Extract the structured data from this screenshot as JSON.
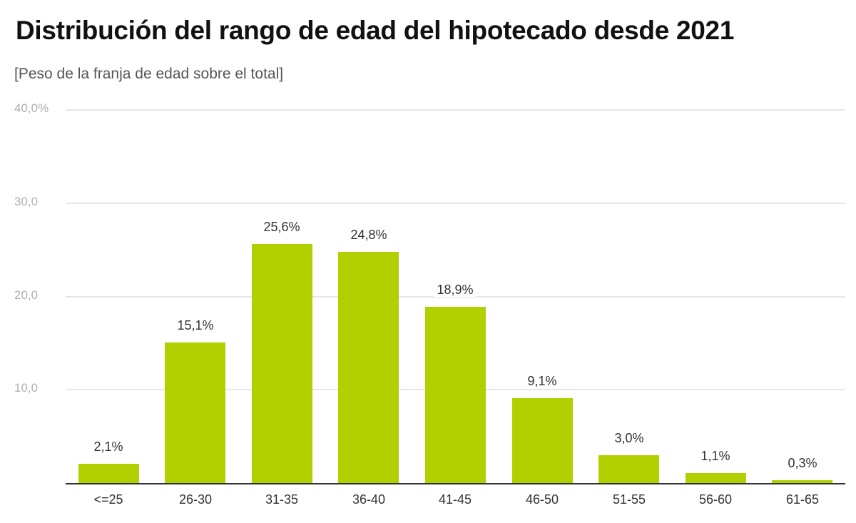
{
  "header": {
    "title": "Distribución del rango de edad del hipotecado desde 2021",
    "subtitle": "[Peso de la franja de edad sobre el total]"
  },
  "colors": {
    "bar": "#b2cf00",
    "gridline": "#e6e6e6",
    "axis_line": "#333333",
    "tick_text": "#b0b0b0"
  },
  "y_axis": {
    "ticks": [
      {
        "value": 40,
        "label": "40,0%"
      },
      {
        "value": 30,
        "label": "30,0"
      },
      {
        "value": 20,
        "label": "20,0"
      },
      {
        "value": 10,
        "label": "10,0"
      }
    ]
  },
  "chart_data": {
    "type": "bar",
    "title": "Distribución del rango de edad del hipotecado desde 2021",
    "subtitle": "[Peso de la franja de edad sobre el total]",
    "xlabel": "",
    "ylabel": "",
    "categories": [
      "<=25",
      "26-30",
      "31-35",
      "36-40",
      "41-45",
      "46-50",
      "51-55",
      "56-60",
      "61-65"
    ],
    "values": [
      2.1,
      15.1,
      25.6,
      24.8,
      18.9,
      9.1,
      3.0,
      1.1,
      0.3
    ],
    "value_labels": [
      "2,1%",
      "15,1%",
      "25,6%",
      "24,8%",
      "18,9%",
      "9,1%",
      "3,0%",
      "1,1%",
      "0,3%"
    ],
    "ylim": [
      0,
      40
    ],
    "yticks": [
      "10,0",
      "20,0",
      "30,0",
      "40,0%"
    ],
    "grid": true,
    "legend": null
  }
}
